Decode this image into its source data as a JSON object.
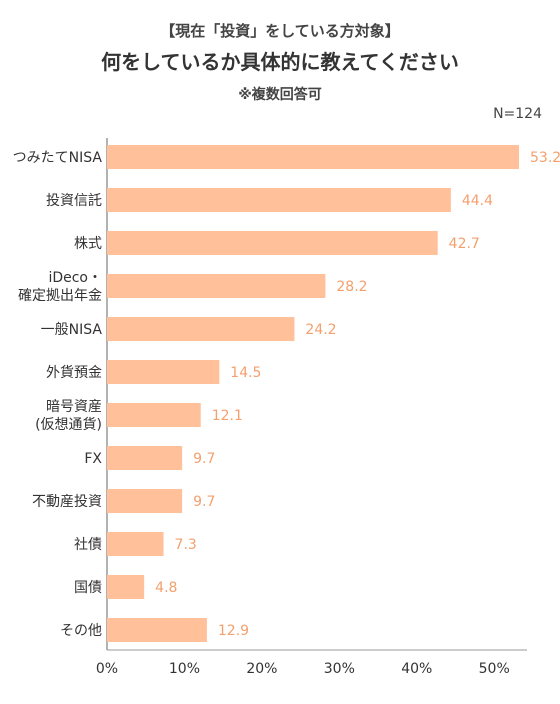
{
  "header": {
    "subtitle": "【現在「投資」をしている方対象】",
    "title": "何をしているか具体的に教えてください",
    "note": "※複数回答可",
    "n_label": "N=124"
  },
  "colors": {
    "bar": "#FFC09A",
    "value_label": "#F4A06E",
    "axis": "#999999",
    "text": "#333333"
  },
  "chart_data": {
    "type": "bar",
    "orientation": "horizontal",
    "categories": [
      [
        "つみたてNISA"
      ],
      [
        "投資信託"
      ],
      [
        "株式"
      ],
      [
        "iDeco・",
        "確定拠出年金"
      ],
      [
        "一般NISA"
      ],
      [
        "外貨預金"
      ],
      [
        "暗号資産",
        "(仮想通貨)"
      ],
      [
        "FX"
      ],
      [
        "不動産投資"
      ],
      [
        "社債"
      ],
      [
        "国債"
      ],
      [
        "その他"
      ]
    ],
    "values": [
      53.2,
      44.4,
      42.7,
      28.2,
      24.2,
      14.5,
      12.1,
      9.7,
      9.7,
      7.3,
      4.8,
      12.9
    ],
    "value_labels": [
      "53.2",
      "44.4",
      "42.7",
      "28.2",
      "24.2",
      "14.5",
      "12.1",
      "9.7",
      "9.7",
      "7.3",
      "4.8",
      "12.9"
    ],
    "x_ticks": [
      0,
      10,
      20,
      30,
      40,
      50
    ],
    "x_tick_labels": [
      "0%",
      "10%",
      "20%",
      "30%",
      "40%",
      "50%"
    ],
    "xlim": [
      0,
      53.2
    ],
    "grid": false
  }
}
